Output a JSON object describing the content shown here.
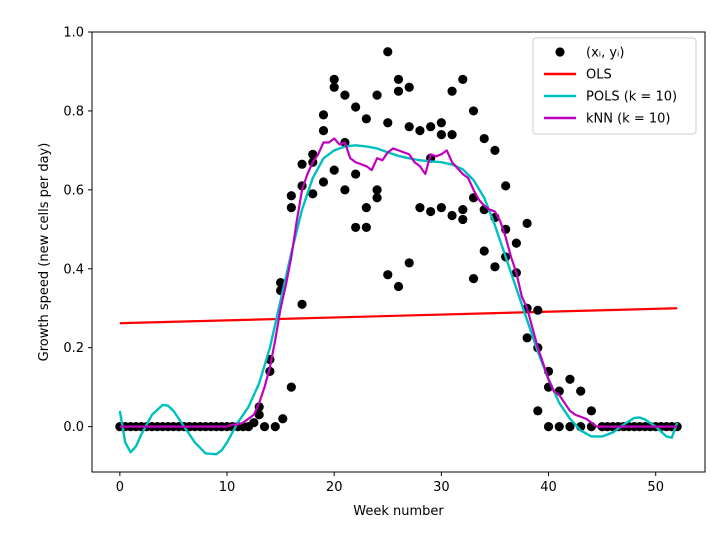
{
  "chart_data": {
    "type": "scatter",
    "title": "",
    "xlabel": "Week number",
    "ylabel": "Growth speed (new cells per day)",
    "xlim": [
      -2.6,
      54.6
    ],
    "ylim": [
      -0.115,
      1.0
    ],
    "xticks": [
      0,
      10,
      20,
      30,
      40,
      50
    ],
    "yticks": [
      0.0,
      0.2,
      0.4,
      0.6,
      0.8,
      1.0
    ],
    "grid": false,
    "legend_position": "top-right",
    "colors": {
      "points": "#000000",
      "ols": "#ff0000",
      "pols": "#00bfbf",
      "knn": "#bf00bf"
    },
    "legend": [
      {
        "key": "points",
        "label": "(xᵢ, yᵢ)",
        "marker": "circle"
      },
      {
        "key": "ols",
        "label": "OLS",
        "marker": "line"
      },
      {
        "key": "pols",
        "label": "POLS (k = 10)",
        "marker": "line"
      },
      {
        "key": "knn",
        "label": "kNN (k = 10)",
        "marker": "line"
      }
    ],
    "scatter_points": [
      [
        0,
        0
      ],
      [
        0.5,
        0
      ],
      [
        1,
        0
      ],
      [
        1.5,
        0
      ],
      [
        2,
        0
      ],
      [
        2.5,
        0
      ],
      [
        3,
        0
      ],
      [
        3.5,
        0
      ],
      [
        4,
        0
      ],
      [
        4.5,
        0
      ],
      [
        5,
        0
      ],
      [
        5.5,
        0
      ],
      [
        6,
        0
      ],
      [
        6.5,
        0
      ],
      [
        7,
        0
      ],
      [
        7.5,
        0
      ],
      [
        8,
        0
      ],
      [
        8.5,
        0
      ],
      [
        9,
        0
      ],
      [
        9.5,
        0
      ],
      [
        10,
        0
      ],
      [
        10.5,
        0
      ],
      [
        11,
        0
      ],
      [
        11.5,
        0
      ],
      [
        12,
        0
      ],
      [
        12.5,
        0.01
      ],
      [
        13,
        0.03
      ],
      [
        13,
        0.05
      ],
      [
        13.5,
        0
      ],
      [
        14,
        0.17
      ],
      [
        14,
        0.14
      ],
      [
        14.5,
        0
      ],
      [
        15,
        0.345
      ],
      [
        15,
        0.365
      ],
      [
        15.2,
        0.02
      ],
      [
        16,
        0.555
      ],
      [
        16,
        0.585
      ],
      [
        16,
        0.1
      ],
      [
        17,
        0.61
      ],
      [
        17,
        0.665
      ],
      [
        17,
        0.31
      ],
      [
        18,
        0.59
      ],
      [
        18,
        0.67
      ],
      [
        18,
        0.69
      ],
      [
        19,
        0.75
      ],
      [
        19,
        0.79
      ],
      [
        19,
        0.62
      ],
      [
        20,
        0.88
      ],
      [
        20,
        0.86
      ],
      [
        20,
        0.65
      ],
      [
        21,
        0.84
      ],
      [
        21,
        0.72
      ],
      [
        21,
        0.6
      ],
      [
        22,
        0.81
      ],
      [
        22,
        0.64
      ],
      [
        22,
        0.505
      ],
      [
        23,
        0.78
      ],
      [
        23,
        0.555
      ],
      [
        23,
        0.505
      ],
      [
        24,
        0.84
      ],
      [
        24,
        0.6
      ],
      [
        24,
        0.58
      ],
      [
        25,
        0.95
      ],
      [
        25,
        0.77
      ],
      [
        25,
        0.385
      ],
      [
        26,
        0.88
      ],
      [
        26,
        0.85
      ],
      [
        26,
        0.355
      ],
      [
        27,
        0.86
      ],
      [
        27,
        0.76
      ],
      [
        27,
        0.415
      ],
      [
        28,
        0.75
      ],
      [
        28,
        0.555
      ],
      [
        29,
        0.76
      ],
      [
        29,
        0.68
      ],
      [
        29,
        0.545
      ],
      [
        30,
        0.77
      ],
      [
        30,
        0.74
      ],
      [
        30,
        0.555
      ],
      [
        31,
        0.85
      ],
      [
        31,
        0.74
      ],
      [
        31,
        0.535
      ],
      [
        32,
        0.88
      ],
      [
        32,
        0.55
      ],
      [
        32,
        0.525
      ],
      [
        33,
        0.8
      ],
      [
        33,
        0.58
      ],
      [
        33,
        0.375
      ],
      [
        34,
        0.73
      ],
      [
        34,
        0.55
      ],
      [
        34,
        0.445
      ],
      [
        35,
        0.7
      ],
      [
        35,
        0.53
      ],
      [
        35,
        0.405
      ],
      [
        36,
        0.61
      ],
      [
        36,
        0.5
      ],
      [
        36,
        0.43
      ],
      [
        37,
        0.465
      ],
      [
        37,
        0.39
      ],
      [
        38,
        0.515
      ],
      [
        38,
        0.3
      ],
      [
        38,
        0.225
      ],
      [
        39,
        0.295
      ],
      [
        39,
        0.2
      ],
      [
        39,
        0.04
      ],
      [
        40,
        0.14
      ],
      [
        40,
        0.1
      ],
      [
        40,
        0
      ],
      [
        41,
        0.09
      ],
      [
        41,
        0
      ],
      [
        42,
        0.12
      ],
      [
        42,
        0
      ],
      [
        43,
        0.09
      ],
      [
        43,
        0
      ],
      [
        44,
        0.04
      ],
      [
        44,
        0
      ],
      [
        45,
        0
      ],
      [
        45.5,
        0
      ],
      [
        46,
        0
      ],
      [
        46.5,
        0
      ],
      [
        47,
        0
      ],
      [
        47.5,
        0
      ],
      [
        48,
        0
      ],
      [
        48.5,
        0
      ],
      [
        49,
        0
      ],
      [
        49.5,
        0
      ],
      [
        50,
        0
      ],
      [
        50.5,
        0
      ],
      [
        51,
        0
      ],
      [
        51.5,
        0
      ],
      [
        52,
        0
      ]
    ],
    "ols_line": [
      [
        0,
        0.262
      ],
      [
        52,
        0.3
      ]
    ],
    "pols_curve": [
      [
        0,
        0.04
      ],
      [
        0.5,
        -0.04
      ],
      [
        1,
        -0.065
      ],
      [
        1.5,
        -0.05
      ],
      [
        2,
        -0.02
      ],
      [
        3,
        0.03
      ],
      [
        4,
        0.055
      ],
      [
        4.5,
        0.053
      ],
      [
        5,
        0.04
      ],
      [
        6,
        0.0
      ],
      [
        7,
        -0.04
      ],
      [
        8,
        -0.068
      ],
      [
        9,
        -0.07
      ],
      [
        9.5,
        -0.06
      ],
      [
        10,
        -0.04
      ],
      [
        11,
        0.01
      ],
      [
        12,
        0.05
      ],
      [
        13,
        0.11
      ],
      [
        14,
        0.2
      ],
      [
        15,
        0.32
      ],
      [
        16,
        0.44
      ],
      [
        17,
        0.55
      ],
      [
        18,
        0.63
      ],
      [
        19,
        0.68
      ],
      [
        20,
        0.7
      ],
      [
        21,
        0.71
      ],
      [
        22,
        0.713
      ],
      [
        23,
        0.71
      ],
      [
        24,
        0.705
      ],
      [
        25,
        0.695
      ],
      [
        26,
        0.686
      ],
      [
        27,
        0.68
      ],
      [
        28,
        0.675
      ],
      [
        29,
        0.672
      ],
      [
        30,
        0.67
      ],
      [
        31,
        0.664
      ],
      [
        32,
        0.652
      ],
      [
        33,
        0.625
      ],
      [
        34,
        0.58
      ],
      [
        35,
        0.51
      ],
      [
        36,
        0.43
      ],
      [
        37,
        0.35
      ],
      [
        38,
        0.27
      ],
      [
        39,
        0.19
      ],
      [
        40,
        0.12
      ],
      [
        41,
        0.06
      ],
      [
        42,
        0.02
      ],
      [
        43,
        -0.01
      ],
      [
        44,
        -0.025
      ],
      [
        45,
        -0.025
      ],
      [
        46,
        -0.015
      ],
      [
        47,
        0.005
      ],
      [
        48,
        0.022
      ],
      [
        48.5,
        0.023
      ],
      [
        49,
        0.018
      ],
      [
        50,
        0.0
      ],
      [
        51,
        -0.025
      ],
      [
        51.5,
        -0.028
      ],
      [
        52,
        0.01
      ]
    ],
    "knn_curve": [
      [
        0,
        0
      ],
      [
        1,
        0
      ],
      [
        2,
        0
      ],
      [
        3,
        0
      ],
      [
        4,
        0
      ],
      [
        5,
        0
      ],
      [
        6,
        0
      ],
      [
        7,
        0
      ],
      [
        8,
        0
      ],
      [
        9,
        0
      ],
      [
        10,
        0
      ],
      [
        10.5,
        0.005
      ],
      [
        11,
        0.005
      ],
      [
        11.5,
        0.01
      ],
      [
        12,
        0.02
      ],
      [
        12.5,
        0.03
      ],
      [
        13,
        0.06
      ],
      [
        13.5,
        0.1
      ],
      [
        14,
        0.15
      ],
      [
        14.5,
        0.22
      ],
      [
        15,
        0.3
      ],
      [
        15.5,
        0.36
      ],
      [
        16,
        0.43
      ],
      [
        16.5,
        0.52
      ],
      [
        17,
        0.6
      ],
      [
        17.5,
        0.64
      ],
      [
        18,
        0.67
      ],
      [
        18.5,
        0.69
      ],
      [
        19,
        0.72
      ],
      [
        19.5,
        0.72
      ],
      [
        20,
        0.73
      ],
      [
        20.5,
        0.715
      ],
      [
        21,
        0.72
      ],
      [
        21.5,
        0.68
      ],
      [
        22,
        0.67
      ],
      [
        22.5,
        0.665
      ],
      [
        23,
        0.66
      ],
      [
        23.5,
        0.65
      ],
      [
        24,
        0.68
      ],
      [
        24.5,
        0.675
      ],
      [
        25,
        0.695
      ],
      [
        25.5,
        0.705
      ],
      [
        26,
        0.7
      ],
      [
        26.5,
        0.695
      ],
      [
        27,
        0.69
      ],
      [
        27.5,
        0.67
      ],
      [
        28,
        0.66
      ],
      [
        28.5,
        0.64
      ],
      [
        29,
        0.69
      ],
      [
        29.5,
        0.685
      ],
      [
        30,
        0.69
      ],
      [
        30.5,
        0.7
      ],
      [
        31,
        0.67
      ],
      [
        31.5,
        0.655
      ],
      [
        32,
        0.64
      ],
      [
        32.5,
        0.63
      ],
      [
        33,
        0.6
      ],
      [
        33.5,
        0.575
      ],
      [
        34,
        0.56
      ],
      [
        34.5,
        0.55
      ],
      [
        35,
        0.545
      ],
      [
        35.5,
        0.52
      ],
      [
        36,
        0.48
      ],
      [
        36.5,
        0.43
      ],
      [
        37,
        0.39
      ],
      [
        37.5,
        0.33
      ],
      [
        38,
        0.3
      ],
      [
        38.5,
        0.25
      ],
      [
        39,
        0.2
      ],
      [
        39.5,
        0.16
      ],
      [
        40,
        0.12
      ],
      [
        40.5,
        0.09
      ],
      [
        41,
        0.08
      ],
      [
        41.5,
        0.06
      ],
      [
        42,
        0.04
      ],
      [
        42.5,
        0.03
      ],
      [
        43,
        0.025
      ],
      [
        43.5,
        0.02
      ],
      [
        44,
        0.01
      ],
      [
        44.5,
        0.0
      ],
      [
        45,
        0
      ],
      [
        46,
        0
      ],
      [
        47,
        0
      ],
      [
        48,
        0
      ],
      [
        49,
        0
      ],
      [
        50,
        0
      ],
      [
        51,
        0
      ],
      [
        52,
        0
      ]
    ]
  }
}
